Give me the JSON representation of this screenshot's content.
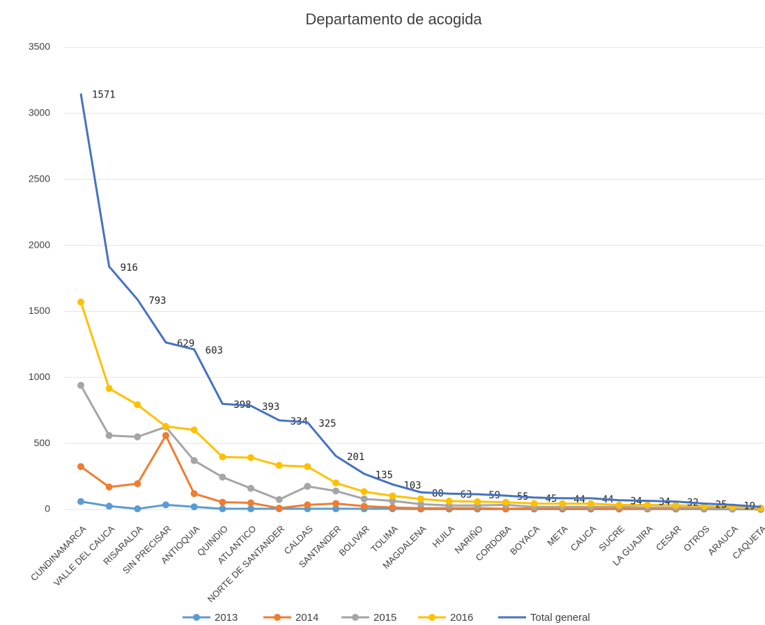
{
  "chart_data": {
    "type": "line",
    "title": "Departamento de acogida",
    "categories": [
      "CUNDINAMARCA",
      "VALLE DEL CAUCA",
      "RISARALDA",
      "SIN PRECISAR",
      "ANTIOQUIA",
      "QUINDIO",
      "ATLANTICO",
      "NORTE DE SANTANDER",
      "CALDAS",
      "SANTANDER",
      "BOLIVAR",
      "TOLIMA",
      "MAGDALENA",
      "HUILA",
      "NARIÑO",
      "CORDOBA",
      "BOYACA",
      "META",
      "CAUCA",
      "SUCRE",
      "LA GUAJIRA",
      "CESAR",
      "OTROS",
      "ARAUCA",
      "CAQUETA"
    ],
    "series": [
      {
        "name": "2013",
        "color": "#5b9bd5",
        "marker": true,
        "values": [
          60,
          25,
          5,
          35,
          20,
          5,
          5,
          5,
          5,
          5,
          5,
          5,
          3,
          3,
          3,
          3,
          3,
          3,
          3,
          3,
          3,
          3,
          3,
          2,
          1
        ]
      },
      {
        "name": "2014",
        "color": "#ed7d31",
        "marker": true,
        "values": [
          325,
          170,
          195,
          560,
          120,
          55,
          50,
          10,
          35,
          45,
          25,
          15,
          10,
          10,
          10,
          5,
          10,
          10,
          10,
          5,
          5,
          5,
          5,
          5,
          1
        ]
      },
      {
        "name": "2015",
        "color": "#a5a5a5",
        "marker": true,
        "values": [
          940,
          560,
          550,
          625,
          370,
          245,
          160,
          75,
          175,
          140,
          80,
          65,
          40,
          30,
          30,
          35,
          20,
          20,
          20,
          20,
          15,
          15,
          10,
          5,
          5
        ]
      },
      {
        "name": "2016",
        "color": "#ffc000",
        "marker": true,
        "labels": true,
        "values": [
          1571,
          916,
          793,
          629,
          603,
          398,
          393,
          334,
          325,
          201,
          135,
          103,
          80,
          63,
          59,
          55,
          45,
          44,
          44,
          34,
          34,
          32,
          25,
          19,
          11
        ]
      },
      {
        "name": "Total general",
        "color": "#4472c4",
        "marker": false,
        "values": [
          3150,
          1840,
          1590,
          1265,
          1212,
          800,
          785,
          675,
          660,
          405,
          270,
          190,
          130,
          120,
          115,
          105,
          90,
          85,
          85,
          70,
          65,
          60,
          45,
          35,
          20
        ]
      }
    ],
    "ylim": [
      0,
      3500
    ],
    "yticks": [
      0,
      500,
      1000,
      1500,
      2000,
      2500,
      3000,
      3500
    ],
    "grid": true
  }
}
